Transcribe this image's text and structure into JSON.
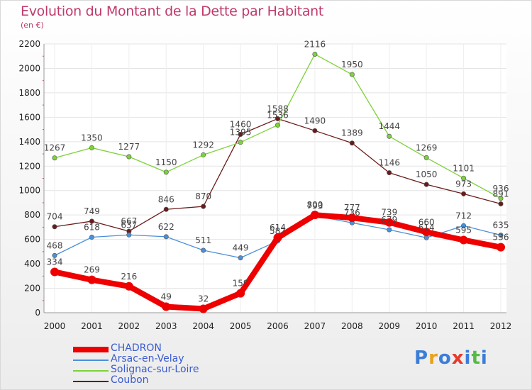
{
  "chart_title": "Evolution du Montant de la Dette par Habitant",
  "chart_unit": "(en €)",
  "logo": {
    "letters": [
      "P",
      "r",
      "o",
      "x",
      "i",
      "t",
      "i"
    ],
    "colors": [
      "#3b7dd8",
      "#e8a21c",
      "#3b7dd8",
      "#e83a2b",
      "#3b7dd8",
      "#58b947",
      "#3b7dd8"
    ]
  },
  "chart_data": {
    "type": "line",
    "title": "Evolution du Montant de la Dette par Habitant",
    "subtitle": "(en €)",
    "xlabel": "",
    "ylabel": "",
    "categories": [
      "2000",
      "2001",
      "2002",
      "2003",
      "2004",
      "2005",
      "2006",
      "2007",
      "2008",
      "2009",
      "2010",
      "2011",
      "2012"
    ],
    "ylim": [
      0,
      2200
    ],
    "yticks": [
      0,
      200,
      400,
      600,
      800,
      1000,
      1200,
      1400,
      1600,
      1800,
      2000,
      2200
    ],
    "grid": true,
    "legend_position": "bottom-left",
    "series": [
      {
        "name": "CHADRON",
        "color": "#ee0000",
        "values": [
          334,
          269,
          216,
          49,
          32,
          159,
          614,
          800,
          777,
          739,
          660,
          595,
          536
        ],
        "labels": [
          "334",
          "269",
          "216",
          "49",
          "32",
          "159",
          "614",
          "800",
          "777",
          "739",
          "660",
          "595",
          "536"
        ]
      },
      {
        "name": "Arsac-en-Velay",
        "color": "#4a90d9",
        "values": [
          468,
          618,
          637,
          622,
          511,
          449,
          587,
          793,
          736,
          679,
          614,
          712,
          635
        ],
        "labels": [
          "468",
          "618",
          "637",
          "622",
          "511",
          "449",
          "587",
          "793",
          "736",
          "679",
          "614",
          "712",
          "635"
        ]
      },
      {
        "name": "Solignac-sur-Loire",
        "color": "#7dd13a",
        "values": [
          1267,
          1350,
          1277,
          1150,
          1292,
          1395,
          1536,
          2116,
          1950,
          1444,
          1269,
          1101,
          936
        ],
        "labels": [
          "1267",
          "1350",
          "1277",
          "1150",
          "1292",
          "1395",
          "1536",
          "2116",
          "1950",
          "1444",
          "1269",
          "1101",
          "936"
        ]
      },
      {
        "name": "Coubon",
        "color": "#6b1a1a",
        "values": [
          704,
          749,
          667,
          846,
          870,
          1460,
          1588,
          1490,
          1389,
          1146,
          1050,
          973,
          891
        ],
        "labels": [
          "704",
          "749",
          "667",
          "846",
          "870",
          "1460",
          "1588",
          "1490",
          "1389",
          "1146",
          "1050",
          "973",
          "891"
        ]
      }
    ]
  }
}
